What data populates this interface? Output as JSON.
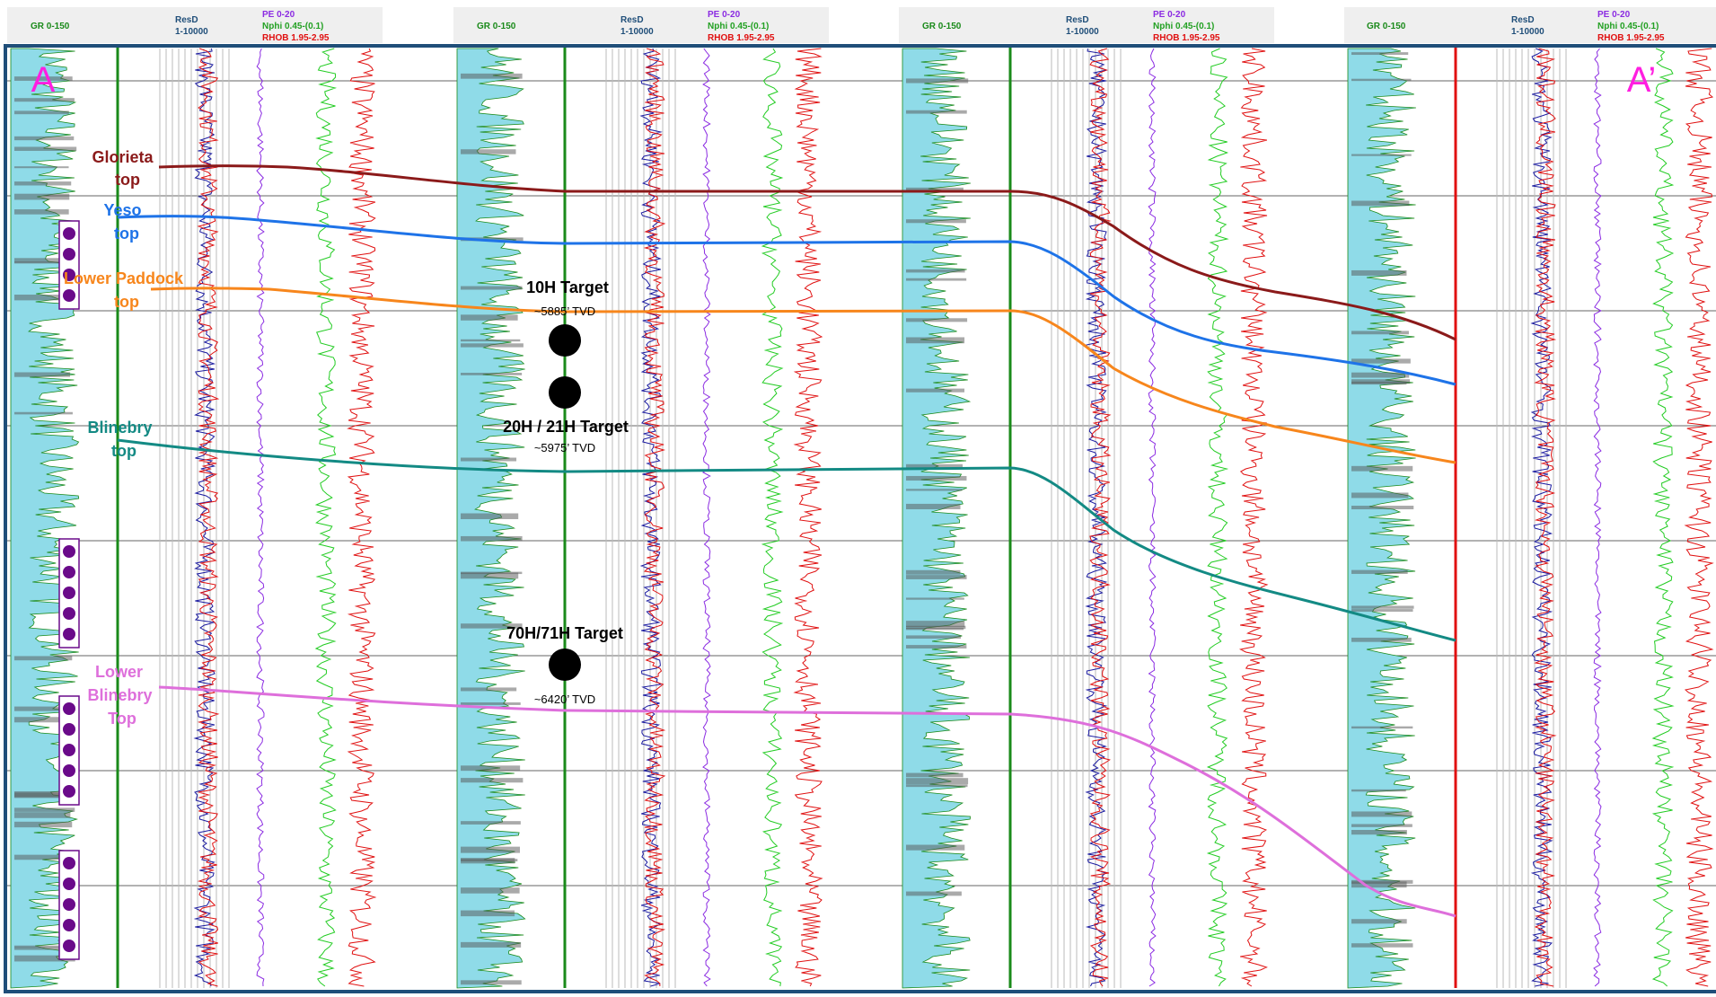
{
  "track_headers": {
    "gr": "GR 0-150",
    "resd_name": "ResD",
    "resd_scale": "1-10000",
    "pe": "PE 0-20",
    "nphi": "Nphi 0.45-(0.1)",
    "rhob": "RHOB 1.95-2.95"
  },
  "section_labels": {
    "start": "A",
    "end": "A’"
  },
  "formation_tops": [
    {
      "name": "Glorieta",
      "lines": [
        "Glorieta",
        "top"
      ],
      "color": "#8b1a1a"
    },
    {
      "name": "Yeso",
      "lines": [
        "Yeso",
        "top"
      ],
      "color": "#1e73e8"
    },
    {
      "name": "Lower Paddock",
      "lines": [
        "Lower Paddock",
        "top"
      ],
      "color": "#f7861c"
    },
    {
      "name": "Blinebry",
      "lines": [
        "Blinebry",
        "top"
      ],
      "color": "#138a84"
    },
    {
      "name": "Lower Blinebry",
      "lines": [
        "Lower",
        "Blinebry",
        "Top"
      ],
      "color": "#de6fdb"
    }
  ],
  "targets": [
    {
      "label": "10H Target",
      "tvd": "~5885’ TVD"
    },
    {
      "label": "20H / 21H Target",
      "tvd": "~5975’ TVD"
    },
    {
      "label": "70H/71H Target",
      "tvd": "~6420’ TVD"
    }
  ],
  "colors": {
    "gr_fill": "#8fdbe8",
    "gr_curve": "#1a8a1a",
    "res_deep": "#1a1aa0",
    "res_shallow": "#e01010",
    "pe": "#8b2be2",
    "nphi": "#22cc22",
    "rhob": "#e01010",
    "frame": "#1f4e79",
    "section_label": "#ff1ee0",
    "perf": "#6a0a8a",
    "well_line": "#1a8a1a",
    "end_line": "#e01010"
  }
}
